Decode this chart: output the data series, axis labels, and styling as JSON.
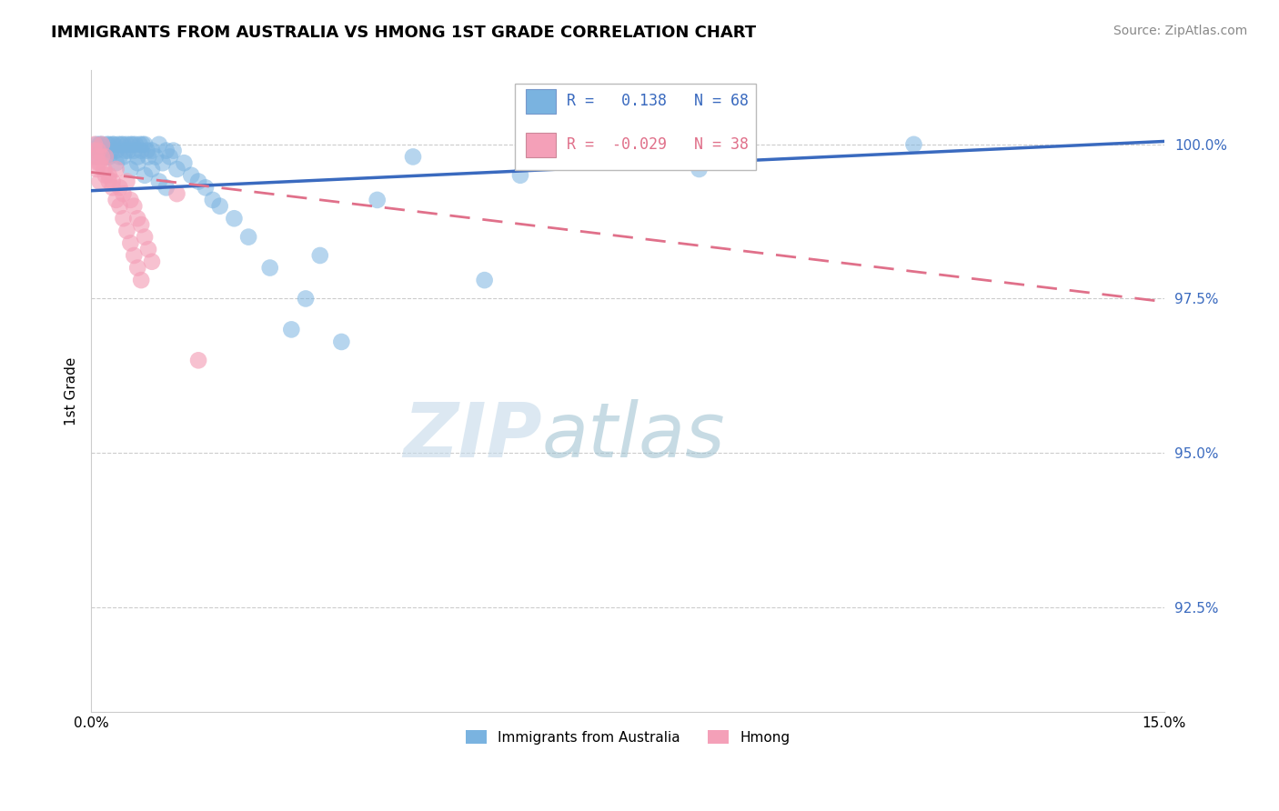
{
  "title": "IMMIGRANTS FROM AUSTRALIA VS HMONG 1ST GRADE CORRELATION CHART",
  "source": "Source: ZipAtlas.com",
  "ylabel": "1st Grade",
  "xlim": [
    0.0,
    15.0
  ],
  "ylim": [
    90.8,
    101.2
  ],
  "yticks": [
    92.5,
    95.0,
    97.5,
    100.0
  ],
  "ytick_labels": [
    "92.5%",
    "95.0%",
    "97.5%",
    "100.0%"
  ],
  "series1_label": "Immigrants from Australia",
  "series1_R": "0.138",
  "series1_N": "68",
  "series1_color": "#7ab3e0",
  "series2_label": "Hmong",
  "series2_R": "-0.029",
  "series2_N": "38",
  "series2_color": "#f4a0b8",
  "series2_line_color": "#e0708a",
  "series1_line_color": "#3a6abf",
  "watermark_zip": "ZIP",
  "watermark_atlas": "atlas",
  "australia_x": [
    0.05,
    0.08,
    0.1,
    0.12,
    0.15,
    0.18,
    0.2,
    0.22,
    0.25,
    0.28,
    0.3,
    0.32,
    0.35,
    0.38,
    0.4,
    0.42,
    0.45,
    0.48,
    0.5,
    0.52,
    0.55,
    0.58,
    0.6,
    0.62,
    0.65,
    0.68,
    0.7,
    0.72,
    0.75,
    0.78,
    0.8,
    0.85,
    0.9,
    0.95,
    1.0,
    1.05,
    1.1,
    1.15,
    1.2,
    1.3,
    1.4,
    1.5,
    1.6,
    1.7,
    1.8,
    2.0,
    2.2,
    2.5,
    3.0,
    3.5,
    0.15,
    0.25,
    0.35,
    0.45,
    0.55,
    0.65,
    0.75,
    0.85,
    0.95,
    1.05,
    4.5,
    6.0,
    8.5,
    11.5,
    3.2,
    4.0,
    5.5,
    2.8
  ],
  "australia_y": [
    99.8,
    100.0,
    99.9,
    100.0,
    100.0,
    99.9,
    99.8,
    100.0,
    100.0,
    99.9,
    100.0,
    100.0,
    99.9,
    100.0,
    99.8,
    100.0,
    100.0,
    99.9,
    100.0,
    99.9,
    100.0,
    100.0,
    99.9,
    100.0,
    99.8,
    100.0,
    99.9,
    100.0,
    100.0,
    99.9,
    99.8,
    99.9,
    99.8,
    100.0,
    99.7,
    99.9,
    99.8,
    99.9,
    99.6,
    99.7,
    99.5,
    99.4,
    99.3,
    99.1,
    99.0,
    98.8,
    98.5,
    98.0,
    97.5,
    96.8,
    99.9,
    99.8,
    99.7,
    99.8,
    99.6,
    99.7,
    99.5,
    99.6,
    99.4,
    99.3,
    99.8,
    99.5,
    99.6,
    100.0,
    98.2,
    99.1,
    97.8,
    97.0
  ],
  "hmong_x": [
    0.05,
    0.08,
    0.1,
    0.12,
    0.15,
    0.18,
    0.2,
    0.25,
    0.3,
    0.35,
    0.4,
    0.45,
    0.5,
    0.55,
    0.6,
    0.65,
    0.7,
    0.75,
    0.8,
    0.85,
    0.05,
    0.1,
    0.15,
    0.2,
    0.25,
    0.3,
    0.35,
    0.4,
    0.45,
    0.5,
    0.55,
    0.6,
    0.65,
    0.7,
    0.08,
    0.12,
    1.2,
    1.5
  ],
  "hmong_y": [
    100.0,
    99.8,
    99.9,
    99.7,
    100.0,
    99.6,
    99.8,
    99.5,
    99.4,
    99.6,
    99.3,
    99.2,
    99.4,
    99.1,
    99.0,
    98.8,
    98.7,
    98.5,
    98.3,
    98.1,
    99.9,
    99.7,
    99.8,
    99.5,
    99.4,
    99.3,
    99.1,
    99.0,
    98.8,
    98.6,
    98.4,
    98.2,
    98.0,
    97.8,
    99.6,
    99.4,
    99.2,
    96.5
  ],
  "trend1_x0": 0.0,
  "trend1_y0": 99.25,
  "trend1_x1": 15.0,
  "trend1_y1": 100.05,
  "trend2_x0": 0.0,
  "trend2_y0": 99.55,
  "trend2_x1": 15.0,
  "trend2_y1": 97.45
}
